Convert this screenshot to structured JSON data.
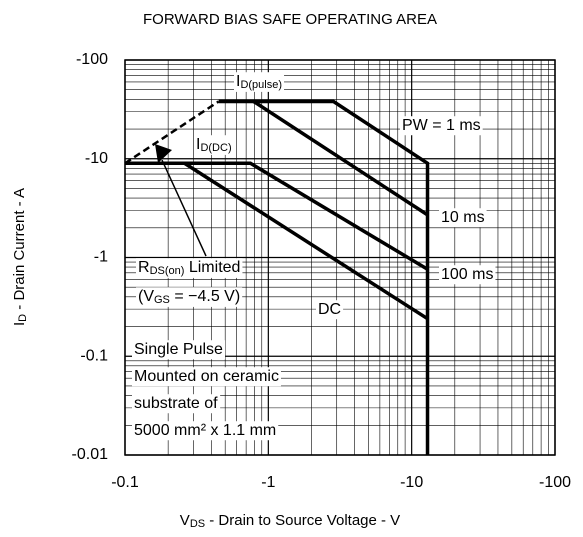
{
  "chart_data": {
    "type": "line",
    "title": "FORWARD BIAS SAFE OPERATING AREA",
    "x_label": {
      "parts": [
        {
          "text": "V"
        },
        {
          "text": "DS",
          "sub": true
        },
        {
          "text": " - Drain to Source Voltage - V"
        }
      ]
    },
    "y_label": {
      "parts": [
        {
          "text": "I"
        },
        {
          "text": "D",
          "sub": true
        },
        {
          "text": " - Drain Current - A"
        }
      ]
    },
    "log_x": true,
    "log_y": true,
    "grid": true,
    "minor_grid": true,
    "xlim": [
      -0.1,
      -100
    ],
    "ylim": [
      -0.01,
      -100
    ],
    "xticks": [
      -0.1,
      -1,
      -10,
      -100
    ],
    "yticks": [
      -0.01,
      -0.1,
      -1,
      -10,
      -100
    ],
    "color": "#000000",
    "series": [
      {
        "name": "PW = 1 ms",
        "x": [
          -0.45,
          -2.85,
          -12.9,
          -12.9
        ],
        "values": [
          -38,
          -38,
          -9,
          -0.01
        ]
      },
      {
        "name": "10 ms",
        "x": [
          -0.79,
          -12.9
        ],
        "values": [
          -38,
          -2.7
        ]
      },
      {
        "name": "100 ms",
        "x": [
          -0.1,
          -0.75,
          -12.9
        ],
        "values": [
          -9,
          -9,
          -0.76
        ]
      },
      {
        "name": "DC",
        "x": [
          -0.26,
          -12.9
        ],
        "values": [
          -9,
          -0.24
        ]
      },
      {
        "dashed": true,
        "x": [
          -0.1,
          -0.45
        ],
        "values": [
          -9,
          -38
        ]
      }
    ],
    "annotations": [
      {
        "parts": [
          {
            "text": "I"
          },
          {
            "text": "D(pulse)",
            "sub": true
          }
        ]
      },
      {
        "parts": [
          {
            "text": "I"
          },
          {
            "text": "D(DC)",
            "sub": true
          }
        ]
      },
      {
        "parts": [
          {
            "text": "R"
          },
          {
            "text": "DS(on)",
            "sub": true
          },
          {
            "text": " Limited"
          }
        ]
      },
      {
        "parts": [
          {
            "text": "(V"
          },
          {
            "text": "GS",
            "sub": true
          },
          {
            "text": " = −4.5 V)"
          }
        ]
      }
    ],
    "note": [
      "Single Pulse",
      "Mounted on ceramic",
      "substrate of",
      "5000 mm² x 1.1 mm"
    ]
  }
}
